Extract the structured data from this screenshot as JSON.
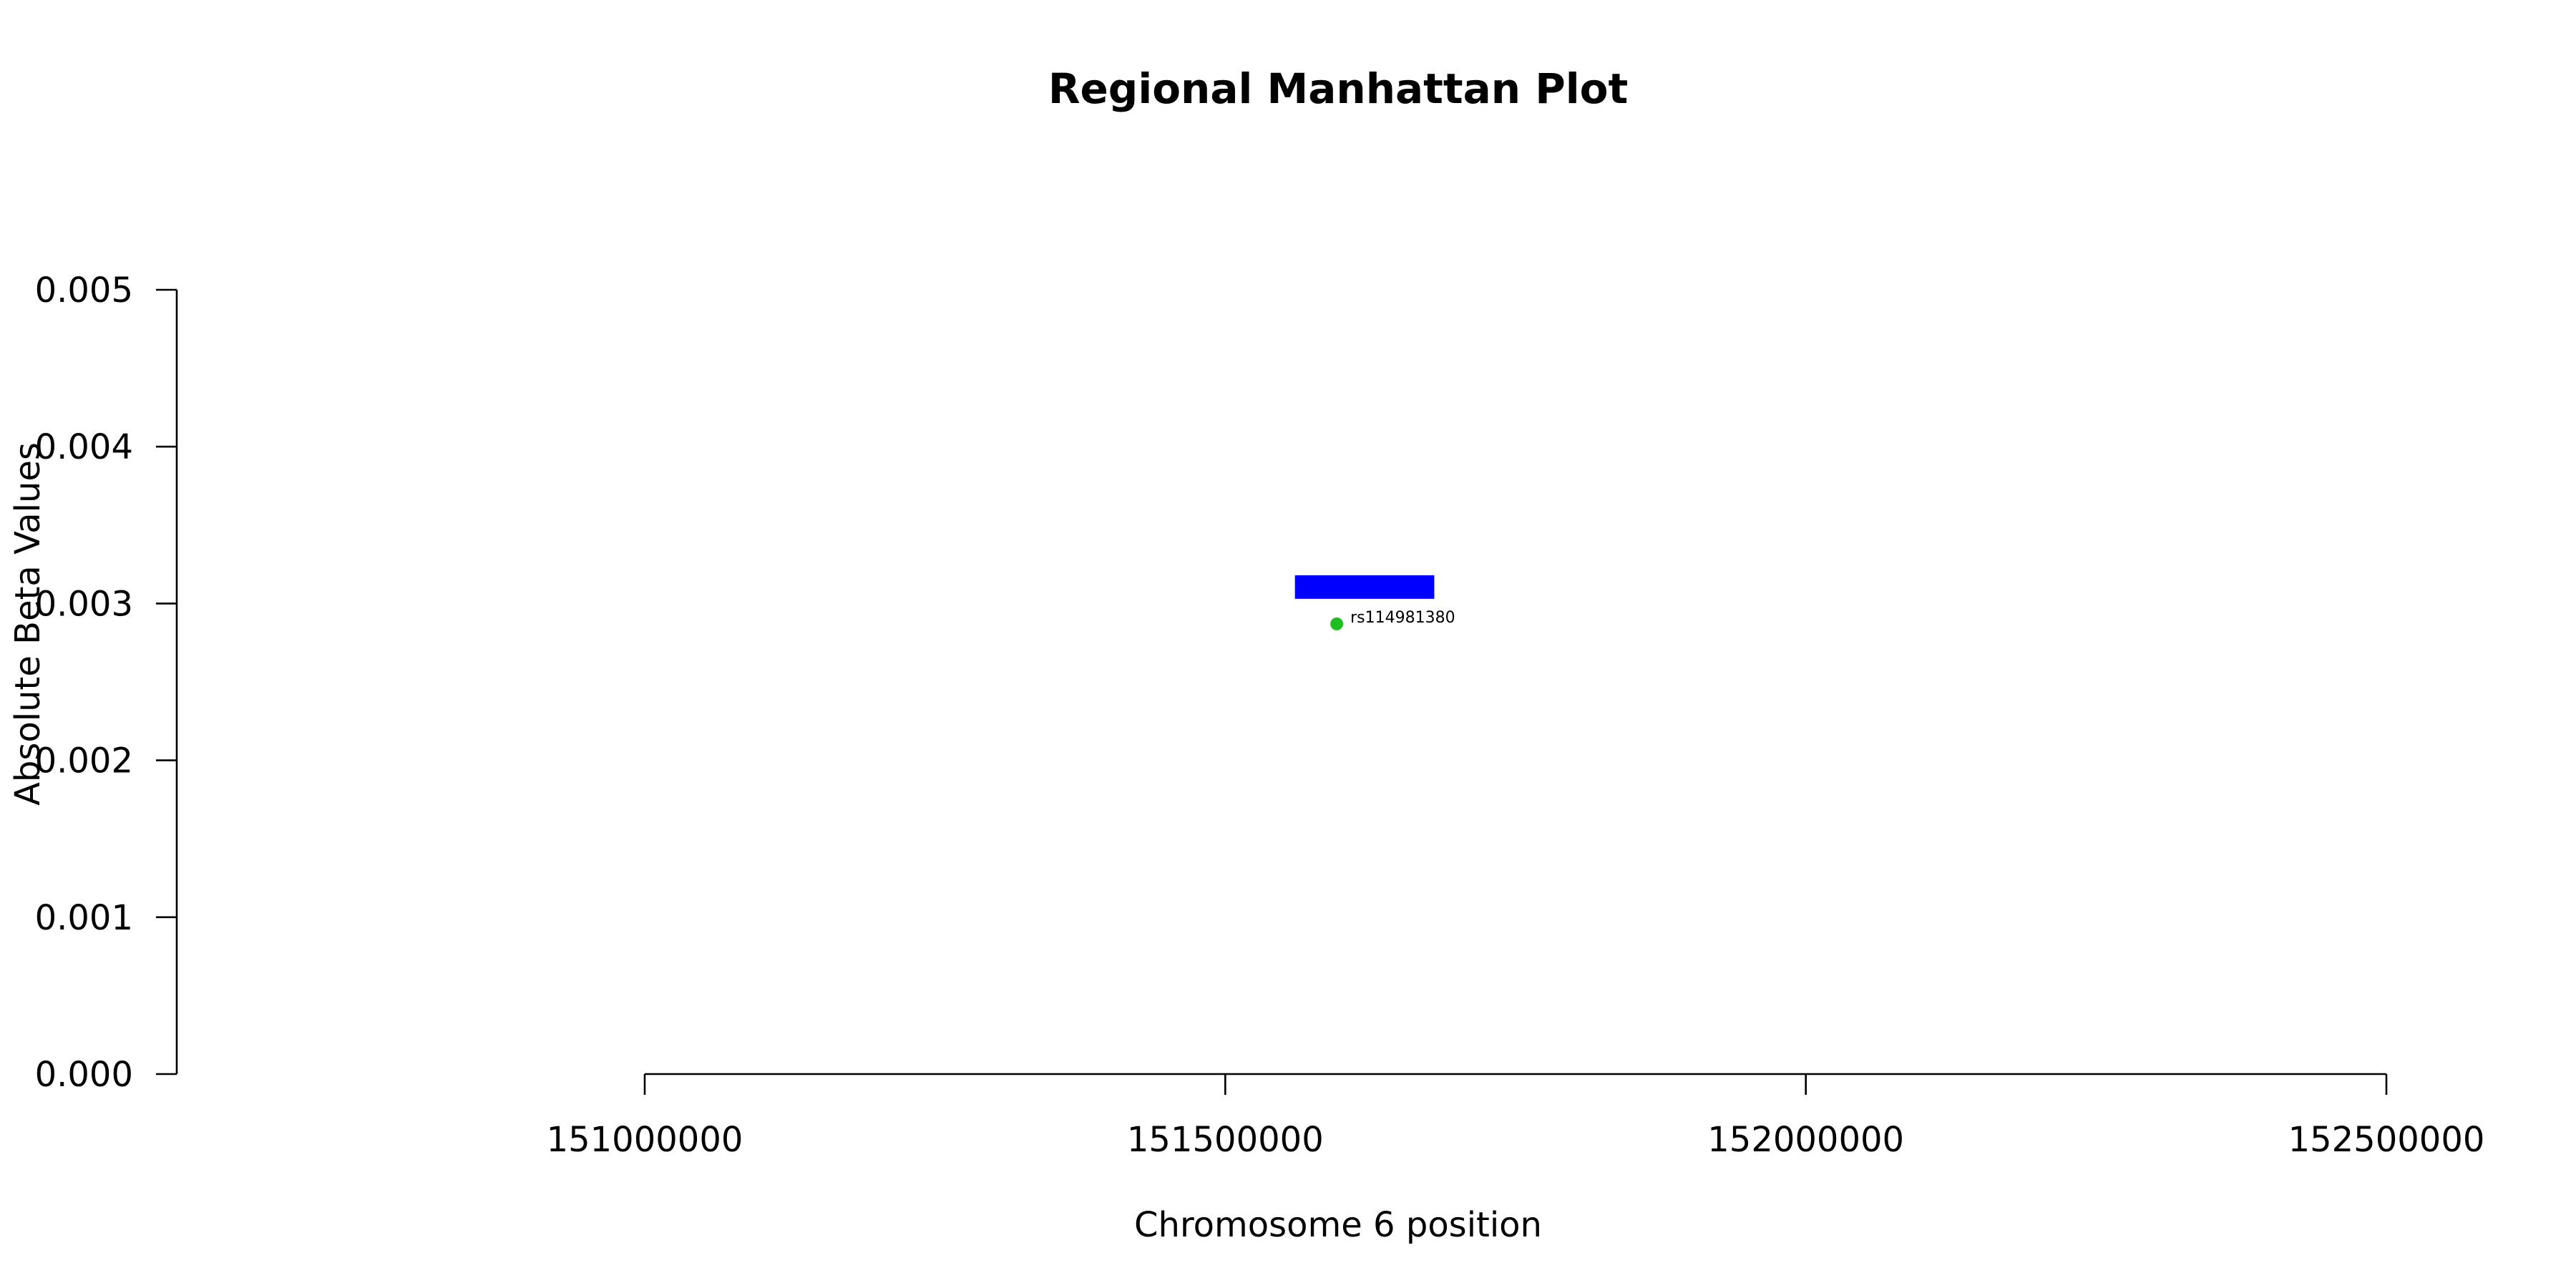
{
  "chart_data": {
    "type": "scatter",
    "title": "Regional Manhattan Plot",
    "xlabel": "Chromosome 6 position",
    "ylabel": "Absolute Beta Values",
    "xlim": [
      151000000,
      152500000
    ],
    "ylim": [
      0,
      0.005
    ],
    "x_ticks": [
      151000000,
      151500000,
      152000000,
      152500000
    ],
    "x_tick_labels": [
      "151000000",
      "151500000",
      "152000000",
      "152500000"
    ],
    "y_ticks": [
      0,
      0.001,
      0.002,
      0.003,
      0.004,
      0.005
    ],
    "y_tick_labels": [
      "0.000",
      "0.001",
      "0.002",
      "0.003",
      "0.004",
      "0.005"
    ],
    "grid": false,
    "legend": "none",
    "gene_regions": [
      {
        "start": 151560000,
        "end": 151680000,
        "y_low": 0.00303,
        "y_high": 0.00318,
        "color": "#0000ff"
      }
    ],
    "points": [
      {
        "x": 151596000,
        "y": 0.00287,
        "label": "rs114981380",
        "color": "#1fbf1f"
      }
    ]
  }
}
